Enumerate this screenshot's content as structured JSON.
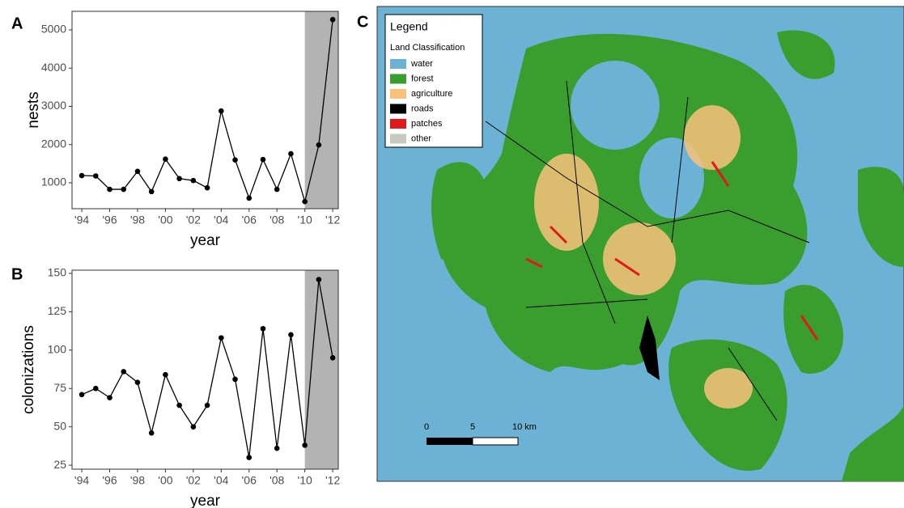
{
  "chart_data": [
    {
      "type": "line",
      "panel_label": "A",
      "x_label": "year",
      "y_label": "nests",
      "color": "#000000",
      "shade_color": "#b3b3b3",
      "x": [
        1994,
        1995,
        1996,
        1997,
        1998,
        1999,
        2000,
        2001,
        2002,
        2003,
        2004,
        2005,
        2006,
        2007,
        2008,
        2009,
        2010,
        2011,
        2012
      ],
      "values": [
        1190,
        1180,
        830,
        830,
        1300,
        770,
        1620,
        1110,
        1060,
        870,
        2880,
        1600,
        600,
        1610,
        830,
        1760,
        510,
        1990,
        5270
      ],
      "shaded_from": 2010,
      "xlim": [
        1993.3,
        2012.4
      ],
      "xticks": [
        {
          "value": 1994,
          "label": "'94"
        },
        {
          "value": 1996,
          "label": "'96"
        },
        {
          "value": 1998,
          "label": "'98"
        },
        {
          "value": 2000,
          "label": "'00"
        },
        {
          "value": 2002,
          "label": "'02"
        },
        {
          "value": 2004,
          "label": "'04"
        },
        {
          "value": 2006,
          "label": "'06"
        },
        {
          "value": 2008,
          "label": "'08"
        },
        {
          "value": 2010,
          "label": "'10"
        },
        {
          "value": 2012,
          "label": "'12"
        }
      ],
      "ylim": [
        323,
        5486
      ],
      "yticks": [
        1000,
        2000,
        3000,
        4000,
        5000
      ]
    },
    {
      "type": "line",
      "panel_label": "B",
      "x_label": "year",
      "y_label": "colonizations",
      "color": "#000000",
      "shade_color": "#b3b3b3",
      "x": [
        1994,
        1995,
        1996,
        1997,
        1998,
        1999,
        2000,
        2001,
        2002,
        2003,
        2004,
        2005,
        2006,
        2007,
        2008,
        2009,
        2010,
        2011,
        2012
      ],
      "values": [
        71,
        75,
        69,
        86,
        79,
        46,
        84,
        64,
        50,
        64,
        108,
        81,
        30,
        114,
        36,
        110,
        38,
        146,
        95
      ],
      "shaded_from": 2010,
      "xlim": [
        1993.3,
        2012.4
      ],
      "xticks": [
        {
          "value": 1994,
          "label": "'94"
        },
        {
          "value": 1996,
          "label": "'96"
        },
        {
          "value": 1998,
          "label": "'98"
        },
        {
          "value": 2000,
          "label": "'00"
        },
        {
          "value": 2002,
          "label": "'02"
        },
        {
          "value": 2004,
          "label": "'04"
        },
        {
          "value": 2006,
          "label": "'06"
        },
        {
          "value": 2008,
          "label": "'08"
        },
        {
          "value": 2010,
          "label": "'10"
        },
        {
          "value": 2012,
          "label": "'12"
        }
      ],
      "ylim": [
        22.4,
        152.1
      ],
      "yticks": [
        25,
        50,
        75,
        100,
        125,
        150
      ]
    }
  ],
  "map": {
    "panel_label": "C",
    "legend_title": "Legend",
    "legend_subtitle": "Land Classification",
    "legend": [
      {
        "name": "water",
        "color": "#6cb2d5"
      },
      {
        "name": "forest",
        "color": "#3a9e2e"
      },
      {
        "name": "agriculture",
        "color": "#f9c27a"
      },
      {
        "name": "roads",
        "color": "#000000"
      },
      {
        "name": "patches",
        "color": "#e0191b"
      },
      {
        "name": "other",
        "color": "#c9c9c4"
      }
    ],
    "scale_labels": [
      "0",
      "5",
      "10 km"
    ]
  }
}
